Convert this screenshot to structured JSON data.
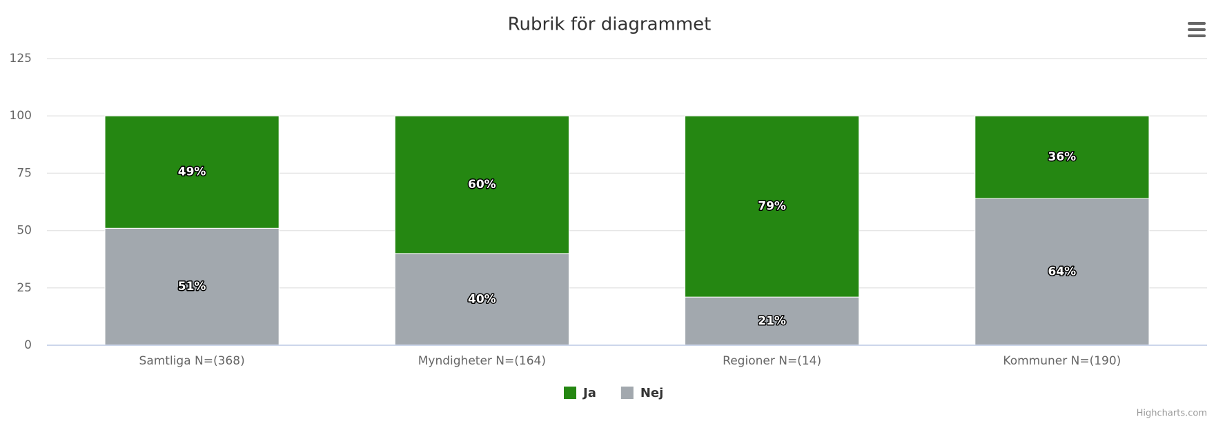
{
  "chart_data": {
    "type": "stacked_bar",
    "title": "Rubrik för diagrammet",
    "categories": [
      "Samtliga N=(368)",
      "Myndigheter N=(164)",
      "Regioner N=(14)",
      "Kommuner N=(190)"
    ],
    "series": [
      {
        "name": "Ja",
        "color": "#258712",
        "values": [
          49,
          60,
          79,
          36
        ],
        "value_labels": [
          "49%",
          "60%",
          "79%",
          "36%"
        ]
      },
      {
        "name": "Nej",
        "color": "#a2a8ae",
        "values": [
          51,
          40,
          21,
          64
        ],
        "value_labels": [
          "51%",
          "40%",
          "21%",
          "64%"
        ]
      }
    ],
    "ylim": [
      0,
      125
    ],
    "yticks": [
      0,
      25,
      50,
      75,
      100,
      125
    ],
    "grid": true,
    "legend": "bottom",
    "credits": "Highcharts.com"
  }
}
